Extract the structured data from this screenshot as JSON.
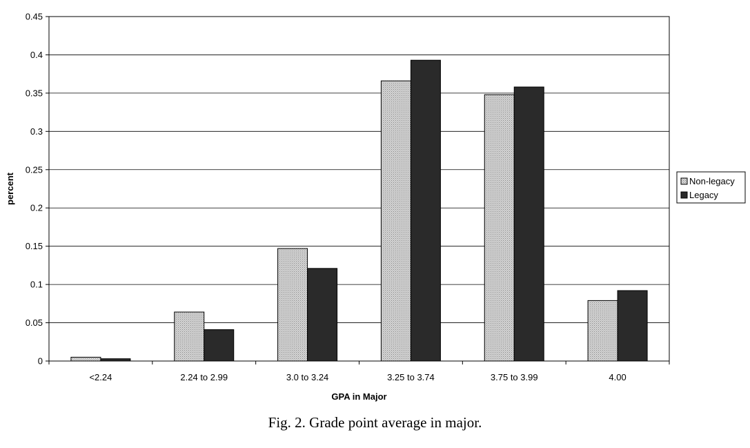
{
  "chart_data": {
    "type": "bar",
    "categories": [
      "<2.24",
      "2.24 to 2.99",
      "3.0 to 3.24",
      "3.25 to 3.74",
      "3.75 to 3.99",
      "4.00"
    ],
    "series": [
      {
        "name": "Non-legacy",
        "values": [
          0.005,
          0.064,
          0.147,
          0.366,
          0.348,
          0.079
        ],
        "color": "#c8c8c8"
      },
      {
        "name": "Legacy",
        "values": [
          0.003,
          0.041,
          0.121,
          0.393,
          0.358,
          0.092
        ],
        "color": "#2a2a2a"
      }
    ],
    "xlabel": "GPA in Major",
    "ylabel": "percent",
    "ylim": [
      0,
      0.45
    ],
    "yticks": [
      "0",
      "0.05",
      "0.1",
      "0.15",
      "0.2",
      "0.25",
      "0.3",
      "0.35",
      "0.4",
      "0.45"
    ],
    "grid": true,
    "legend_position": "right"
  },
  "caption": "Fig. 2.  Grade point average in major."
}
